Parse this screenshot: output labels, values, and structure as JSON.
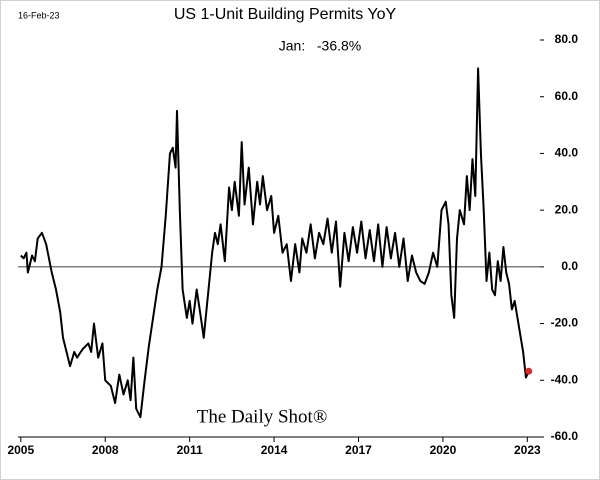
{
  "chart_data": {
    "type": "line",
    "title": "US 1-Unit Building Permits YoY",
    "date_note": "16-Feb-23",
    "annotation": "Jan:   -36.8%",
    "watermark": "The Daily Shot®",
    "xlim": [
      2004.9,
      2023.45
    ],
    "xticks": [
      2005,
      2008,
      2011,
      2014,
      2017,
      2020,
      2023
    ],
    "ylim": [
      -60,
      80
    ],
    "yticks": [
      {
        "value": -60,
        "label": "-60.0"
      },
      {
        "value": -40,
        "label": "-40.0"
      },
      {
        "value": -20,
        "label": "-20.0"
      },
      {
        "value": 0,
        "label": "0.0"
      },
      {
        "value": 20,
        "label": "20.0"
      },
      {
        "value": 40,
        "label": "40.0"
      },
      {
        "value": 60,
        "label": "60.0"
      },
      {
        "value": 80,
        "label": "80.0"
      }
    ],
    "zero_line": true,
    "marker_color": "#d42a2a",
    "x": [
      2005.0,
      2005.1,
      2005.2,
      2005.25,
      2005.4,
      2005.5,
      2005.6,
      2005.75,
      2005.9,
      2006.0,
      2006.1,
      2006.25,
      2006.4,
      2006.5,
      2006.6,
      2006.75,
      2006.9,
      2007.0,
      2007.2,
      2007.4,
      2007.5,
      2007.6,
      2007.75,
      2007.9,
      2008.0,
      2008.2,
      2008.35,
      2008.5,
      2008.65,
      2008.8,
      2008.9,
      2009.0,
      2009.1,
      2009.25,
      2009.4,
      2009.55,
      2009.7,
      2009.85,
      2010.0,
      2010.15,
      2010.3,
      2010.4,
      2010.5,
      2010.55,
      2010.65,
      2010.75,
      2010.9,
      2011.0,
      2011.1,
      2011.25,
      2011.4,
      2011.5,
      2011.65,
      2011.8,
      2011.9,
      2012.0,
      2012.1,
      2012.25,
      2012.4,
      2012.5,
      2012.6,
      2012.75,
      2012.85,
      2012.95,
      2013.1,
      2013.25,
      2013.4,
      2013.5,
      2013.6,
      2013.75,
      2013.9,
      2014.0,
      2014.15,
      2014.3,
      2014.45,
      2014.6,
      2014.75,
      2014.9,
      2015.0,
      2015.15,
      2015.3,
      2015.45,
      2015.6,
      2015.75,
      2015.9,
      2016.05,
      2016.2,
      2016.35,
      2016.5,
      2016.65,
      2016.8,
      2016.95,
      2017.1,
      2017.25,
      2017.4,
      2017.55,
      2017.7,
      2017.85,
      2018.0,
      2018.15,
      2018.3,
      2018.45,
      2018.6,
      2018.75,
      2018.9,
      2019.05,
      2019.2,
      2019.35,
      2019.5,
      2019.65,
      2019.8,
      2019.95,
      2020.1,
      2020.2,
      2020.3,
      2020.4,
      2020.5,
      2020.6,
      2020.75,
      2020.85,
      2020.95,
      2021.05,
      2021.15,
      2021.25,
      2021.35,
      2021.45,
      2021.55,
      2021.65,
      2021.75,
      2021.85,
      2021.95,
      2022.05,
      2022.15,
      2022.25,
      2022.35,
      2022.45,
      2022.55,
      2022.65,
      2022.75,
      2022.85,
      2022.95,
      2023.05
    ],
    "series": [
      {
        "name": "US 1-Unit Building Permits YoY",
        "color": "#000000",
        "values": [
          4,
          3,
          5,
          -2,
          4,
          2,
          10,
          12,
          8,
          3,
          -2,
          -8,
          -16,
          -25,
          -29,
          -35,
          -30,
          -32,
          -29,
          -27,
          -30,
          -20,
          -32,
          -27,
          -40,
          -42,
          -48,
          -38,
          -45,
          -40,
          -47,
          -32,
          -50,
          -53,
          -40,
          -28,
          -18,
          -8,
          0,
          18,
          40,
          42,
          35,
          55,
          20,
          -8,
          -18,
          -12,
          -20,
          -8,
          -18,
          -25,
          -10,
          5,
          12,
          8,
          15,
          2,
          28,
          20,
          30,
          18,
          44,
          22,
          35,
          15,
          30,
          22,
          32,
          20,
          25,
          12,
          18,
          5,
          8,
          -5,
          8,
          -2,
          10,
          5,
          15,
          3,
          12,
          8,
          17,
          5,
          16,
          -7,
          12,
          2,
          14,
          5,
          16,
          3,
          13,
          2,
          15,
          0,
          14,
          3,
          12,
          0,
          10,
          -5,
          4,
          -2,
          -5,
          -6,
          -2,
          5,
          0,
          20,
          23,
          15,
          -10,
          -18,
          10,
          20,
          15,
          32,
          20,
          38,
          25,
          70,
          40,
          20,
          -5,
          5,
          -8,
          -10,
          2,
          -5,
          7,
          -2,
          -6,
          -15,
          -12,
          -18,
          -24,
          -30,
          -39,
          -36.8
        ]
      }
    ]
  }
}
